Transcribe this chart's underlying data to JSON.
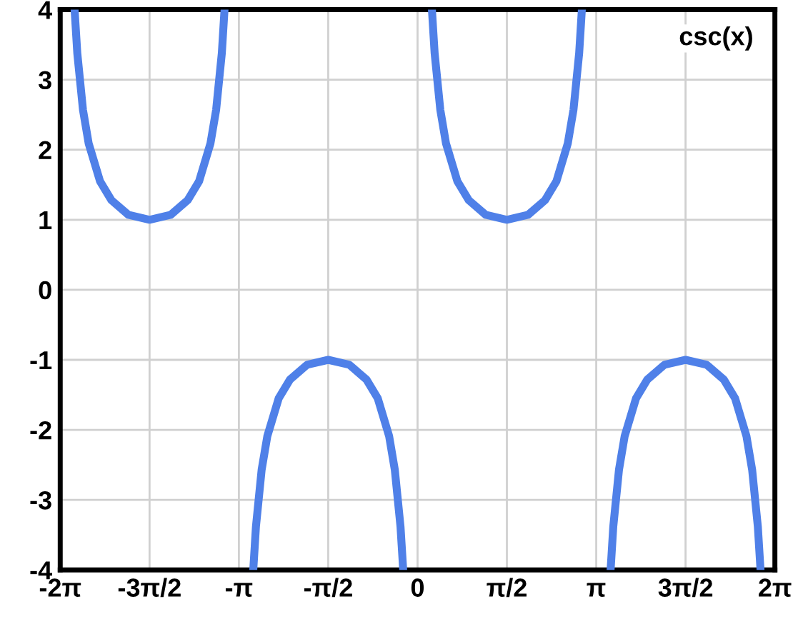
{
  "chart_data": {
    "type": "line",
    "annotations": [
      "csc(x)"
    ],
    "series": [
      {
        "color": "#4f80e8",
        "x": [
          -6.0305,
          -5.9832,
          -5.8832,
          -5.7832,
          -5.5832,
          -5.3832,
          -5.0832,
          -4.7124,
          -4.3416,
          -4.0416,
          -3.8416,
          -3.6416,
          -3.5416,
          -3.4416,
          -3.3943,
          -3.1416,
          -2.8889,
          -2.8416,
          -2.7416,
          -2.6416,
          -2.4416,
          -2.2416,
          -1.9416,
          -1.5708,
          -1.2,
          -0.9,
          -0.7,
          -0.5,
          -0.4,
          -0.3,
          -0.2527,
          0,
          0.2527,
          0.3,
          0.4,
          0.5,
          0.7,
          0.9,
          1.2,
          1.5708,
          1.9416,
          2.2416,
          2.4416,
          2.6416,
          2.7416,
          2.8416,
          2.8889,
          3.1416,
          3.3943,
          3.4416,
          3.5416,
          3.6416,
          3.8416,
          4.0416,
          4.3416,
          4.7124,
          5.0832,
          5.3832,
          5.5832,
          5.7832,
          5.8832,
          5.9832,
          6.0305
        ],
        "values": [
          4.0,
          3.38,
          2.57,
          2.09,
          1.55,
          1.28,
          1.07,
          1.0,
          1.07,
          1.28,
          1.55,
          2.09,
          2.57,
          3.38,
          4.0,
          null,
          -4.0,
          -3.38,
          -2.57,
          -2.09,
          -1.55,
          -1.28,
          -1.07,
          -1.0,
          -1.07,
          -1.28,
          -1.55,
          -2.09,
          -2.57,
          -3.38,
          -4.0,
          null,
          4.0,
          3.38,
          2.57,
          2.09,
          1.55,
          1.28,
          1.07,
          1.0,
          1.07,
          1.28,
          1.55,
          2.09,
          2.57,
          3.38,
          4.0,
          null,
          -4.0,
          -3.38,
          -2.57,
          -2.09,
          -1.55,
          -1.28,
          -1.07,
          -1.0,
          -1.07,
          -1.28,
          -1.55,
          -2.09,
          -2.57,
          -3.38,
          -4.0
        ]
      }
    ],
    "xlim": [
      -6.2832,
      6.2832
    ],
    "xticks": [
      {
        "value": -6.2832,
        "label": "-2π"
      },
      {
        "value": -4.7124,
        "label": "-3π/2"
      },
      {
        "value": -3.1416,
        "label": "-π"
      },
      {
        "value": -1.5708,
        "label": "-π/2"
      },
      0,
      {
        "value": 1.5708,
        "label": "π/2"
      },
      {
        "value": 3.1416,
        "label": "π"
      },
      {
        "value": 4.7124,
        "label": "3π/2"
      },
      {
        "value": 6.2832,
        "label": "2π"
      }
    ],
    "ylim": [
      -4,
      4
    ],
    "yticks": [
      -4,
      -3,
      -2,
      -1,
      0,
      1,
      2,
      3,
      4
    ],
    "grid": true,
    "line_style": "solid",
    "marker": "none"
  }
}
